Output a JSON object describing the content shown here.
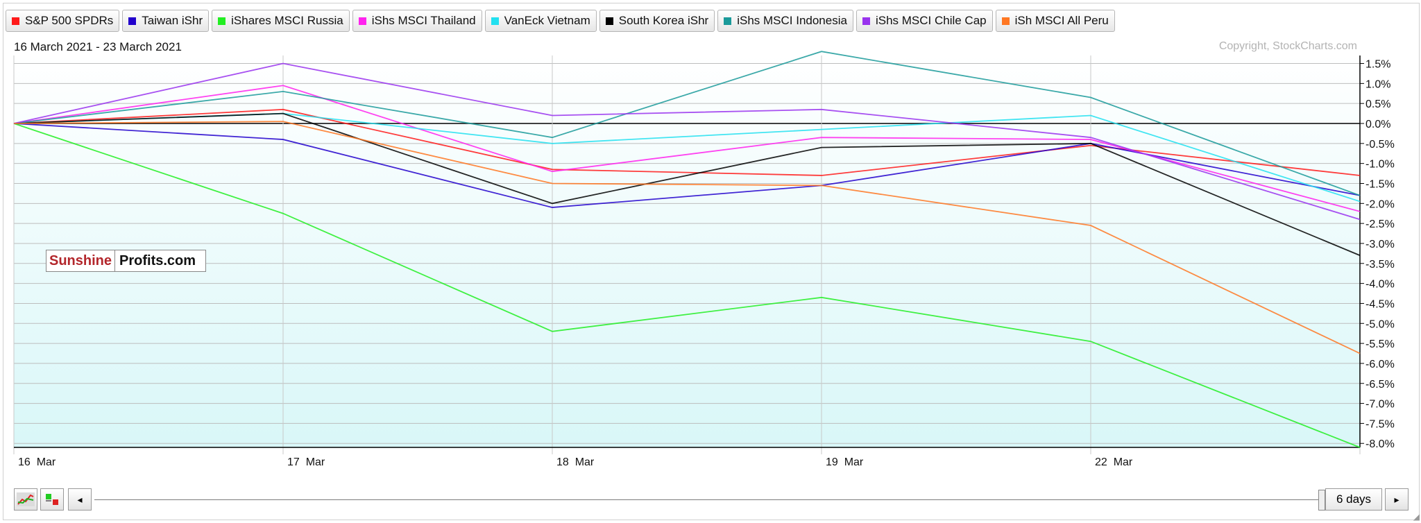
{
  "legend": [
    {
      "label": "S&P 500 SPDRs",
      "color": "#ff1a1a"
    },
    {
      "label": "Taiwan iShr",
      "color": "#2200cc"
    },
    {
      "label": "iShares MSCI Russia",
      "color": "#22ee22"
    },
    {
      "label": "iShs MSCI Thailand",
      "color": "#ff22ee"
    },
    {
      "label": "VanEck Vietnam",
      "color": "#22e0f0"
    },
    {
      "label": "South Korea iShr",
      "color": "#000000"
    },
    {
      "label": "iShs MSCI Indonesia",
      "color": "#1a9a9a"
    },
    {
      "label": "iShs MSCI Chile Cap",
      "color": "#9933ee"
    },
    {
      "label": "iSh MSCI All Peru",
      "color": "#ff7722"
    }
  ],
  "date_range": "16 March 2021 - 23 March 2021",
  "copyright": "Copyright, StockCharts.com",
  "logo": {
    "part1": "Sunshine",
    "part2": "Profits.com"
  },
  "controls": {
    "prev_icon": "◂",
    "next_icon": "▸",
    "days_label": "6 days",
    "chart_type_icon": "line-chart-icon",
    "color_icon": "color-legend-icon"
  },
  "chart_data": {
    "type": "line",
    "categories": [
      "16 Mar",
      "17 Mar",
      "18 Mar",
      "19 Mar",
      "22 Mar",
      "23 Mar"
    ],
    "x_tick_labels": [
      "16  Mar",
      "17  Mar",
      "18  Mar",
      "19  Mar",
      "22  Mar"
    ],
    "y_ticks": [
      "1.5%",
      "1.0%",
      "0.5%",
      "0.0%",
      "-0.5%",
      "-1.0%",
      "-1.5%",
      "-2.0%",
      "-2.5%",
      "-3.0%",
      "-3.5%",
      "-4.0%",
      "-4.5%",
      "-5.0%",
      "-5.5%",
      "-6.0%",
      "-6.5%",
      "-7.0%",
      "-7.5%",
      "-8.0%"
    ],
    "ylim": [
      -8.1,
      1.7
    ],
    "unit": "%",
    "series": [
      {
        "name": "S&P 500 SPDRs",
        "color": "#ff1a1a",
        "values": [
          0,
          0.35,
          -1.15,
          -1.3,
          -0.55,
          -1.3
        ]
      },
      {
        "name": "Taiwan iShr",
        "color": "#2200cc",
        "values": [
          0,
          -0.4,
          -2.1,
          -1.55,
          -0.5,
          -1.8
        ]
      },
      {
        "name": "iShares MSCI Russia",
        "color": "#22ee22",
        "values": [
          0,
          -2.25,
          -5.2,
          -4.35,
          -5.45,
          -8.1
        ]
      },
      {
        "name": "iShs MSCI Thailand",
        "color": "#ff22ee",
        "values": [
          0,
          0.95,
          -1.2,
          -0.35,
          -0.4,
          -2.2
        ]
      },
      {
        "name": "VanEck Vietnam",
        "color": "#22e0f0",
        "values": [
          0,
          0.25,
          -0.5,
          -0.15,
          0.2,
          -1.95
        ]
      },
      {
        "name": "South Korea iShr",
        "color": "#000000",
        "values": [
          0,
          0.25,
          -2.0,
          -0.6,
          -0.5,
          -3.3
        ]
      },
      {
        "name": "iShs MSCI Indonesia",
        "color": "#1a9a9a",
        "values": [
          0,
          0.8,
          -0.35,
          1.8,
          0.65,
          -1.8
        ]
      },
      {
        "name": "iShs MSCI Chile Cap",
        "color": "#9933ee",
        "values": [
          0,
          1.5,
          0.2,
          0.35,
          -0.35,
          -2.4
        ]
      },
      {
        "name": "iSh MSCI All Peru",
        "color": "#ff7722",
        "values": [
          0,
          0.05,
          -1.5,
          -1.55,
          -2.55,
          -5.75
        ]
      }
    ]
  }
}
